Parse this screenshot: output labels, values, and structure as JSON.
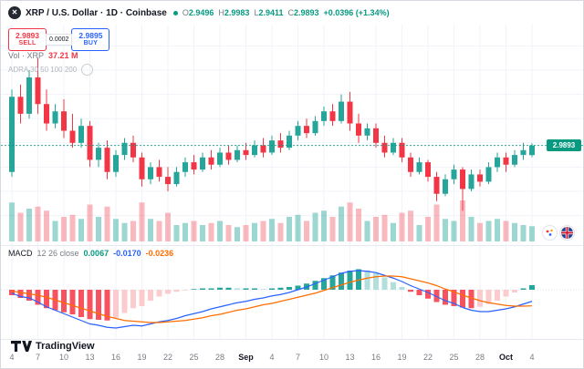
{
  "header": {
    "title": "XRP / U.S. Dollar · 1D · Coinbase",
    "ohlc": {
      "o_label": "O",
      "o": "2.9496",
      "h_label": "H",
      "h": "2.9983",
      "l_label": "L",
      "l": "2.9411",
      "c_label": "C",
      "c": "2.9893",
      "change": "+0.0396 (+1.34%)"
    }
  },
  "order_panel": {
    "sell_price": "2.9893",
    "sell_label": "SELL",
    "spread": "0.0002",
    "buy_price": "2.9895",
    "buy_label": "BUY"
  },
  "volume_legend": {
    "label": "Vol · XRP",
    "value": "37.21 M"
  },
  "overlay_legend": {
    "text": "ADRA 30 50 100 200"
  },
  "macd_legend": {
    "name": "MACD",
    "params": "12 26 close",
    "hist": "0.0067",
    "macd": "-0.0170",
    "signal": "-0.0236"
  },
  "price_badge": {
    "value": "2.9893"
  },
  "branding": {
    "logo_text": "TradingView"
  },
  "colors": {
    "up": "#26a69a",
    "down": "#f23645",
    "vol_up": "rgba(38,166,154,0.45)",
    "vol_down": "rgba(242,54,69,0.35)",
    "macd_line": "#2962ff",
    "signal_line": "#ff6d00",
    "hist_up": "#26a69a",
    "hist_up_fade": "#b2dfdb",
    "hist_down": "#f7525f",
    "hist_down_fade": "#fccbcd",
    "accent_green": "#089981",
    "accent_sell": "#f23645",
    "accent_buy": "#2962ff",
    "grid": "#f0f3fa"
  },
  "chart_data": [
    {
      "type": "candlestick",
      "title": "XRP / U.S. Dollar · 1D · Coinbase",
      "x_tick_labels": [
        "4",
        "7",
        "10",
        "13",
        "16",
        "19",
        "22",
        "25",
        "28",
        "Sep",
        "4",
        "7",
        "10",
        "13",
        "16",
        "19",
        "22",
        "25",
        "28",
        "Oct",
        "4"
      ],
      "x_tick_every": 3,
      "ylim": [
        2.68,
        3.42
      ],
      "volume_unit": "M",
      "volume_max": 120,
      "last_close": 2.9893,
      "columns": [
        "open",
        "high",
        "low",
        "close",
        "volume_m"
      ],
      "ohlcv": [
        [
          2.88,
          3.22,
          2.86,
          3.19,
          95
        ],
        [
          3.19,
          3.24,
          3.08,
          3.12,
          70
        ],
        [
          3.12,
          3.3,
          3.1,
          3.27,
          80
        ],
        [
          3.27,
          3.35,
          3.12,
          3.16,
          85
        ],
        [
          3.16,
          3.22,
          3.05,
          3.08,
          75
        ],
        [
          3.08,
          3.16,
          3.06,
          3.13,
          50
        ],
        [
          3.13,
          3.18,
          3.02,
          3.05,
          60
        ],
        [
          3.05,
          3.12,
          2.98,
          3.0,
          65
        ],
        [
          3.0,
          3.1,
          2.98,
          3.07,
          55
        ],
        [
          3.07,
          3.09,
          2.9,
          2.93,
          90
        ],
        [
          2.93,
          3.0,
          2.9,
          2.98,
          60
        ],
        [
          2.98,
          3.01,
          2.85,
          2.88,
          85
        ],
        [
          2.88,
          2.97,
          2.86,
          2.95,
          55
        ],
        [
          2.95,
          3.02,
          2.93,
          3.0,
          45
        ],
        [
          3.0,
          3.03,
          2.92,
          2.94,
          50
        ],
        [
          2.94,
          2.96,
          2.82,
          2.85,
          95
        ],
        [
          2.85,
          2.92,
          2.83,
          2.9,
          55
        ],
        [
          2.9,
          2.93,
          2.84,
          2.86,
          50
        ],
        [
          2.86,
          2.9,
          2.8,
          2.83,
          70
        ],
        [
          2.83,
          2.9,
          2.82,
          2.88,
          40
        ],
        [
          2.88,
          2.94,
          2.86,
          2.92,
          45
        ],
        [
          2.92,
          2.95,
          2.87,
          2.89,
          50
        ],
        [
          2.89,
          2.96,
          2.88,
          2.94,
          40
        ],
        [
          2.94,
          2.97,
          2.89,
          2.91,
          45
        ],
        [
          2.91,
          2.98,
          2.9,
          2.96,
          50
        ],
        [
          2.96,
          2.99,
          2.91,
          2.93,
          40
        ],
        [
          2.93,
          2.99,
          2.92,
          2.97,
          35
        ],
        [
          2.97,
          3.0,
          2.93,
          2.95,
          40
        ],
        [
          2.95,
          3.01,
          2.94,
          2.99,
          45
        ],
        [
          2.99,
          3.02,
          2.94,
          2.96,
          50
        ],
        [
          2.96,
          3.03,
          2.95,
          3.01,
          55
        ],
        [
          3.01,
          3.04,
          2.96,
          2.98,
          45
        ],
        [
          2.98,
          3.05,
          2.97,
          3.03,
          60
        ],
        [
          3.03,
          3.09,
          3.01,
          3.07,
          65
        ],
        [
          3.07,
          3.1,
          3.02,
          3.04,
          50
        ],
        [
          3.04,
          3.11,
          3.03,
          3.09,
          70
        ],
        [
          3.09,
          3.15,
          3.07,
          3.13,
          75
        ],
        [
          3.13,
          3.16,
          3.07,
          3.09,
          60
        ],
        [
          3.09,
          3.2,
          3.08,
          3.17,
          85
        ],
        [
          3.17,
          3.21,
          3.05,
          3.08,
          95
        ],
        [
          3.08,
          3.12,
          3.0,
          3.03,
          80
        ],
        [
          3.03,
          3.08,
          3.01,
          3.06,
          50
        ],
        [
          3.06,
          3.08,
          2.98,
          3.0,
          60
        ],
        [
          3.0,
          3.03,
          2.94,
          2.96,
          65
        ],
        [
          2.96,
          3.02,
          2.95,
          3.0,
          45
        ],
        [
          3.0,
          3.02,
          2.92,
          2.94,
          70
        ],
        [
          2.94,
          2.96,
          2.86,
          2.88,
          75
        ],
        [
          2.88,
          2.94,
          2.87,
          2.92,
          40
        ],
        [
          2.92,
          2.93,
          2.84,
          2.86,
          60
        ],
        [
          2.86,
          2.88,
          2.76,
          2.79,
          90
        ],
        [
          2.79,
          2.87,
          2.78,
          2.85,
          55
        ],
        [
          2.85,
          2.91,
          2.83,
          2.89,
          50
        ],
        [
          2.89,
          2.9,
          2.72,
          2.81,
          100
        ],
        [
          2.81,
          2.89,
          2.8,
          2.87,
          60
        ],
        [
          2.87,
          2.89,
          2.82,
          2.84,
          45
        ],
        [
          2.84,
          2.92,
          2.83,
          2.9,
          50
        ],
        [
          2.9,
          2.96,
          2.88,
          2.94,
          55
        ],
        [
          2.94,
          2.96,
          2.88,
          2.91,
          50
        ],
        [
          2.91,
          2.97,
          2.9,
          2.95,
          45
        ],
        [
          2.95,
          3.0,
          2.93,
          2.97,
          40
        ],
        [
          2.9496,
          2.9983,
          2.9411,
          2.9893,
          37.21
        ]
      ]
    },
    {
      "type": "macd",
      "params": "12 26 close",
      "ylim": [
        -0.06,
        0.06
      ],
      "histogram": [
        -0.008,
        -0.012,
        -0.016,
        -0.022,
        -0.027,
        -0.03,
        -0.033,
        -0.036,
        -0.04,
        -0.043,
        -0.044,
        -0.045,
        -0.041,
        -0.034,
        -0.027,
        -0.024,
        -0.016,
        -0.01,
        -0.006,
        -0.003,
        -0.001,
        0.001,
        0.002,
        0.002,
        0.003,
        0.003,
        0.002,
        0.002,
        0.002,
        0.001,
        0.002,
        0.003,
        0.004,
        0.006,
        0.009,
        0.013,
        0.017,
        0.021,
        0.025,
        0.028,
        0.03,
        0.028,
        0.024,
        0.018,
        0.011,
        0.004,
        -0.003,
        -0.008,
        -0.013,
        -0.018,
        -0.022,
        -0.024,
        -0.026,
        -0.027,
        -0.025,
        -0.021,
        -0.016,
        -0.01,
        -0.004,
        0.002,
        0.0067
      ],
      "macd_line": [
        -0.005,
        -0.01,
        -0.012,
        -0.018,
        -0.025,
        -0.03,
        -0.035,
        -0.04,
        -0.045,
        -0.05,
        -0.052,
        -0.055,
        -0.056,
        -0.054,
        -0.052,
        -0.053,
        -0.05,
        -0.047,
        -0.045,
        -0.042,
        -0.038,
        -0.035,
        -0.032,
        -0.028,
        -0.025,
        -0.022,
        -0.019,
        -0.017,
        -0.014,
        -0.012,
        -0.009,
        -0.007,
        -0.004,
        0.0,
        0.004,
        0.009,
        0.014,
        0.019,
        0.024,
        0.027,
        0.028,
        0.027,
        0.025,
        0.021,
        0.017,
        0.012,
        0.006,
        0.001,
        -0.004,
        -0.01,
        -0.016,
        -0.02,
        -0.026,
        -0.03,
        -0.032,
        -0.032,
        -0.03,
        -0.028,
        -0.025,
        -0.021,
        -0.017
      ],
      "signal_line": [
        -0.002,
        -0.004,
        -0.006,
        -0.008,
        -0.011,
        -0.015,
        -0.019,
        -0.023,
        -0.027,
        -0.031,
        -0.035,
        -0.039,
        -0.042,
        -0.045,
        -0.046,
        -0.047,
        -0.048,
        -0.048,
        -0.047,
        -0.046,
        -0.045,
        -0.043,
        -0.041,
        -0.038,
        -0.036,
        -0.033,
        -0.03,
        -0.028,
        -0.025,
        -0.022,
        -0.02,
        -0.017,
        -0.014,
        -0.011,
        -0.008,
        -0.005,
        -0.001,
        0.003,
        0.007,
        0.011,
        0.014,
        0.017,
        0.019,
        0.02,
        0.02,
        0.019,
        0.016,
        0.013,
        0.01,
        0.006,
        0.001,
        -0.003,
        -0.008,
        -0.012,
        -0.016,
        -0.019,
        -0.021,
        -0.023,
        -0.024,
        -0.024,
        -0.0236
      ]
    }
  ]
}
